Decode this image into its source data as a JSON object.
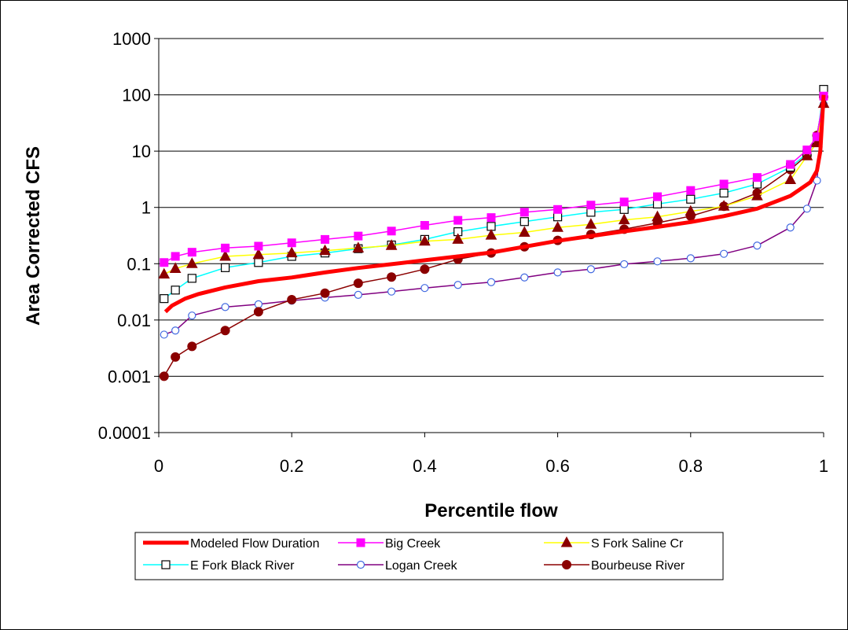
{
  "chart_data": {
    "type": "line",
    "title": "",
    "xlabel": "Percentile flow",
    "ylabel": "Area Corrected CFS",
    "xlim": [
      0,
      1
    ],
    "ylim": [
      0.0001,
      1000
    ],
    "yscale": "log",
    "grid": "horizontal major gridlines",
    "legend_placement": "bottom",
    "x_tick_labels": [
      "0",
      "0.2",
      "0.4",
      "0.6",
      "0.8",
      "1"
    ],
    "y_tick_labels": [
      "0.0001",
      "0.001",
      "0.01",
      "0.1",
      "1",
      "10",
      "100",
      "1000"
    ],
    "series": [
      {
        "name": "Modeled Flow Duration",
        "color": "#ff0000",
        "marker": "none",
        "line_width": "thick",
        "x": [
          0.01,
          0.02,
          0.04,
          0.06,
          0.1,
          0.15,
          0.2,
          0.25,
          0.3,
          0.35,
          0.4,
          0.45,
          0.5,
          0.55,
          0.6,
          0.65,
          0.7,
          0.75,
          0.8,
          0.85,
          0.9,
          0.95,
          0.98,
          0.99,
          0.995,
          1.0
        ],
        "y": [
          0.014,
          0.018,
          0.024,
          0.029,
          0.038,
          0.049,
          0.057,
          0.07,
          0.084,
          0.098,
          0.115,
          0.135,
          0.158,
          0.2,
          0.255,
          0.31,
          0.375,
          0.45,
          0.55,
          0.7,
          0.95,
          1.6,
          2.8,
          4.5,
          10,
          100
        ]
      },
      {
        "name": "Big Creek",
        "color": "#ff00ff",
        "marker": "square-filled",
        "x": [
          0.008,
          0.025,
          0.05,
          0.1,
          0.15,
          0.2,
          0.25,
          0.3,
          0.35,
          0.4,
          0.45,
          0.5,
          0.55,
          0.6,
          0.65,
          0.7,
          0.75,
          0.8,
          0.85,
          0.9,
          0.95,
          0.975,
          0.99,
          1.0
        ],
        "y": [
          0.105,
          0.135,
          0.16,
          0.19,
          0.205,
          0.235,
          0.27,
          0.31,
          0.38,
          0.48,
          0.59,
          0.66,
          0.82,
          0.92,
          1.1,
          1.25,
          1.55,
          2.0,
          2.6,
          3.4,
          5.8,
          10.5,
          18,
          95
        ]
      },
      {
        "name": "S Fork Saline Cr",
        "color": "#ffff00",
        "marker_color": "#8b0000",
        "marker": "triangle-filled",
        "x": [
          0.008,
          0.025,
          0.05,
          0.1,
          0.15,
          0.2,
          0.25,
          0.3,
          0.35,
          0.4,
          0.45,
          0.5,
          0.55,
          0.6,
          0.65,
          0.7,
          0.75,
          0.8,
          0.85,
          0.9,
          0.95,
          0.975,
          0.99,
          1.0
        ],
        "y": [
          0.065,
          0.082,
          0.1,
          0.135,
          0.145,
          0.155,
          0.17,
          0.19,
          0.21,
          0.25,
          0.27,
          0.32,
          0.36,
          0.44,
          0.5,
          0.6,
          0.68,
          0.85,
          1.05,
          1.6,
          3.1,
          8.2,
          14,
          70
        ]
      },
      {
        "name": "E Fork Black River",
        "color": "#00ffff",
        "marker": "square-open",
        "x": [
          0.008,
          0.025,
          0.05,
          0.1,
          0.15,
          0.2,
          0.25,
          0.3,
          0.35,
          0.4,
          0.45,
          0.5,
          0.55,
          0.6,
          0.65,
          0.7,
          0.75,
          0.8,
          0.85,
          0.9,
          0.95,
          0.975,
          0.99,
          1.0
        ],
        "y": [
          0.024,
          0.034,
          0.055,
          0.085,
          0.105,
          0.135,
          0.155,
          0.185,
          0.215,
          0.27,
          0.37,
          0.46,
          0.56,
          0.68,
          0.82,
          0.92,
          1.15,
          1.4,
          1.8,
          2.6,
          5.2,
          9,
          16,
          125
        ]
      },
      {
        "name": "Logan Creek",
        "color": "#800080",
        "marker_color": "#4169e1",
        "marker": "circle-open",
        "x": [
          0.008,
          0.025,
          0.05,
          0.1,
          0.15,
          0.2,
          0.25,
          0.3,
          0.35,
          0.4,
          0.45,
          0.5,
          0.55,
          0.6,
          0.65,
          0.7,
          0.75,
          0.8,
          0.85,
          0.9,
          0.95,
          0.975,
          0.99,
          1.0
        ],
        "y": [
          0.0055,
          0.0065,
          0.012,
          0.017,
          0.019,
          0.022,
          0.025,
          0.028,
          0.032,
          0.037,
          0.042,
          0.047,
          0.057,
          0.07,
          0.08,
          0.098,
          0.11,
          0.125,
          0.15,
          0.21,
          0.44,
          0.95,
          3.0,
          68
        ]
      },
      {
        "name": "Bourbeuse River",
        "color": "#8b0000",
        "marker": "circle-filled",
        "x": [
          0.008,
          0.025,
          0.05,
          0.1,
          0.15,
          0.2,
          0.25,
          0.3,
          0.35,
          0.4,
          0.45,
          0.5,
          0.55,
          0.6,
          0.65,
          0.7,
          0.75,
          0.8,
          0.85,
          0.9,
          0.95,
          0.975,
          0.99,
          1.0
        ],
        "y": [
          0.001,
          0.0022,
          0.0034,
          0.0065,
          0.014,
          0.023,
          0.03,
          0.045,
          0.058,
          0.08,
          0.12,
          0.155,
          0.2,
          0.26,
          0.33,
          0.41,
          0.53,
          0.7,
          1.05,
          1.8,
          4.7,
          8.5,
          19,
          92
        ]
      }
    ]
  }
}
